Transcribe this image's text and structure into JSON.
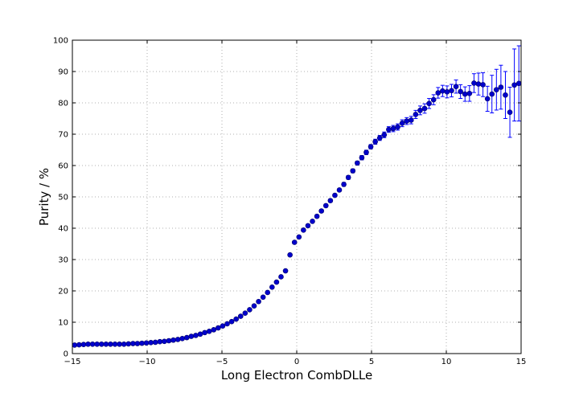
{
  "chart_data": {
    "type": "scatter",
    "title": "",
    "xlabel": "Long Electron CombDLLe",
    "ylabel": "Purity / %",
    "xlim": [
      -15,
      15
    ],
    "ylim": [
      0,
      100
    ],
    "xticks": [
      "−15",
      "−10",
      "−5",
      "0",
      "5",
      "10",
      "15"
    ],
    "yticks": [
      "0",
      "10",
      "20",
      "30",
      "40",
      "50",
      "60",
      "70",
      "80",
      "90",
      "100"
    ],
    "grid": true,
    "legend": "none",
    "colors": {
      "marker": "#0000cc",
      "errorbar": "#0000ff",
      "grid": "#999999"
    },
    "series": [
      {
        "x": [
          -14.85,
          -14.55,
          -14.25,
          -13.95,
          -13.65,
          -13.35,
          -13.05,
          -12.75,
          -12.45,
          -12.15,
          -11.85,
          -11.55,
          -11.25,
          -10.95,
          -10.65,
          -10.35,
          -10.05,
          -9.75,
          -9.45,
          -9.15,
          -8.85,
          -8.55,
          -8.25,
          -7.95,
          -7.65,
          -7.35,
          -7.05,
          -6.75,
          -6.45,
          -6.15,
          -5.85,
          -5.55,
          -5.25,
          -4.95,
          -4.65,
          -4.35,
          -4.05,
          -3.75,
          -3.45,
          -3.15,
          -2.85,
          -2.55,
          -2.25,
          -1.95,
          -1.65,
          -1.35,
          -1.05,
          -0.75,
          -0.45,
          -0.15,
          0.15,
          0.45,
          0.75,
          1.05,
          1.35,
          1.65,
          1.95,
          2.25,
          2.55,
          2.85,
          3.15,
          3.45,
          3.75,
          4.05,
          4.35,
          4.65,
          4.95,
          5.25,
          5.55,
          5.85,
          6.15,
          6.45,
          6.75,
          7.05,
          7.35,
          7.65,
          7.95,
          8.25,
          8.55,
          8.85,
          9.15,
          9.45,
          9.75,
          10.05,
          10.35,
          10.65,
          10.95,
          11.25,
          11.55,
          11.85,
          12.15,
          12.45,
          12.75,
          13.05,
          13.35,
          13.65,
          13.95,
          14.25,
          14.55,
          14.85
        ],
        "y": [
          2.7,
          2.8,
          2.9,
          3.0,
          3.0,
          3.0,
          3.0,
          3.0,
          3.0,
          3.0,
          3.0,
          3.0,
          3.1,
          3.2,
          3.2,
          3.3,
          3.4,
          3.5,
          3.6,
          3.8,
          3.9,
          4.1,
          4.3,
          4.5,
          4.8,
          5.1,
          5.5,
          5.8,
          6.2,
          6.7,
          7.1,
          7.6,
          8.2,
          8.8,
          9.5,
          10.2,
          11.0,
          11.9,
          12.9,
          14.0,
          15.2,
          16.6,
          18.0,
          19.5,
          21.2,
          22.8,
          24.5,
          26.4,
          31.5,
          35.5,
          37.2,
          39.4,
          40.8,
          42.2,
          43.8,
          45.5,
          47.2,
          48.8,
          50.5,
          52.2,
          54.0,
          56.2,
          58.3,
          60.8,
          62.5,
          64.2,
          66.0,
          67.6,
          68.8,
          69.8,
          71.5,
          71.8,
          72.3,
          73.5,
          74.2,
          74.5,
          76.3,
          77.6,
          78.2,
          79.8,
          81.0,
          83.2,
          83.8,
          83.5,
          83.9,
          85.2,
          83.6,
          82.8,
          83.0,
          86.3,
          86.0,
          85.8,
          81.3,
          82.8,
          84.2,
          85.0,
          82.5,
          77.0,
          85.7,
          86.2
        ],
        "yerr": [
          0.1,
          0.1,
          0.1,
          0.1,
          0.1,
          0.1,
          0.1,
          0.1,
          0.1,
          0.1,
          0.1,
          0.1,
          0.1,
          0.1,
          0.1,
          0.1,
          0.1,
          0.1,
          0.1,
          0.1,
          0.1,
          0.1,
          0.1,
          0.1,
          0.1,
          0.1,
          0.1,
          0.1,
          0.1,
          0.2,
          0.2,
          0.2,
          0.2,
          0.2,
          0.2,
          0.2,
          0.2,
          0.2,
          0.2,
          0.2,
          0.3,
          0.3,
          0.3,
          0.3,
          0.3,
          0.3,
          0.3,
          0.3,
          0.4,
          0.4,
          0.4,
          0.4,
          0.4,
          0.5,
          0.5,
          0.5,
          0.5,
          0.5,
          0.5,
          0.5,
          0.6,
          0.6,
          0.6,
          0.6,
          0.7,
          0.7,
          0.7,
          0.8,
          0.8,
          0.9,
          0.9,
          1.0,
          1.0,
          1.1,
          1.1,
          1.2,
          1.3,
          1.4,
          1.5,
          1.6,
          1.6,
          1.7,
          1.8,
          1.9,
          2.0,
          2.1,
          2.2,
          2.3,
          2.5,
          3.0,
          3.5,
          3.8,
          4.0,
          6.0,
          6.5,
          7.0,
          7.5,
          8.0,
          11.5,
          12.0
        ]
      }
    ]
  }
}
